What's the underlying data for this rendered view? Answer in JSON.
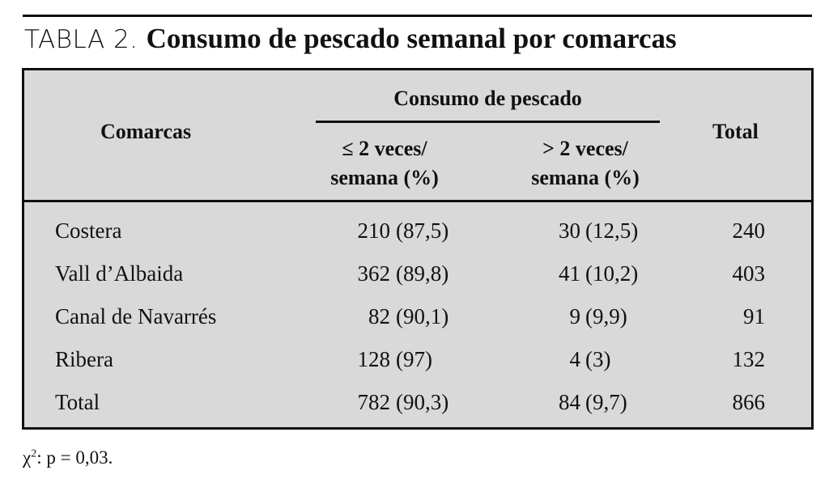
{
  "title": {
    "label": "TABLA 2.",
    "text": "Consumo de pescado semanal por comarcas"
  },
  "header": {
    "col0": "Comarcas",
    "group": "Consumo de pescado",
    "col1_line1": "≤ 2 veces/",
    "col1_line2": "semana (%)",
    "col2_line1": "> 2 veces/",
    "col2_line2": "semana (%)",
    "total": "Total"
  },
  "rows": [
    {
      "name": "Costera",
      "n1": "210",
      "p1": "(87,5)",
      "n2": "30",
      "p2": "(12,5)",
      "total": "240"
    },
    {
      "name": "Vall d’Albaida",
      "n1": "362",
      "p1": "(89,8)",
      "n2": "41",
      "p2": "(10,2)",
      "total": "403"
    },
    {
      "name": "Canal de Navarrés",
      "n1": "82",
      "p1": "(90,1)",
      "n2": "9",
      "p2": "(9,9)",
      "total": "91"
    },
    {
      "name": "Ribera",
      "n1": "128",
      "p1": "(97)",
      "n2": "4",
      "p2": "(3)",
      "total": "132"
    },
    {
      "name": "Total",
      "n1": "782",
      "p1": "(90,3)",
      "n2": "84",
      "p2": "(9,7)",
      "total": "866"
    }
  ],
  "footnote": {
    "symbol": "χ",
    "sup": "2",
    "text": ": p = 0,03."
  }
}
